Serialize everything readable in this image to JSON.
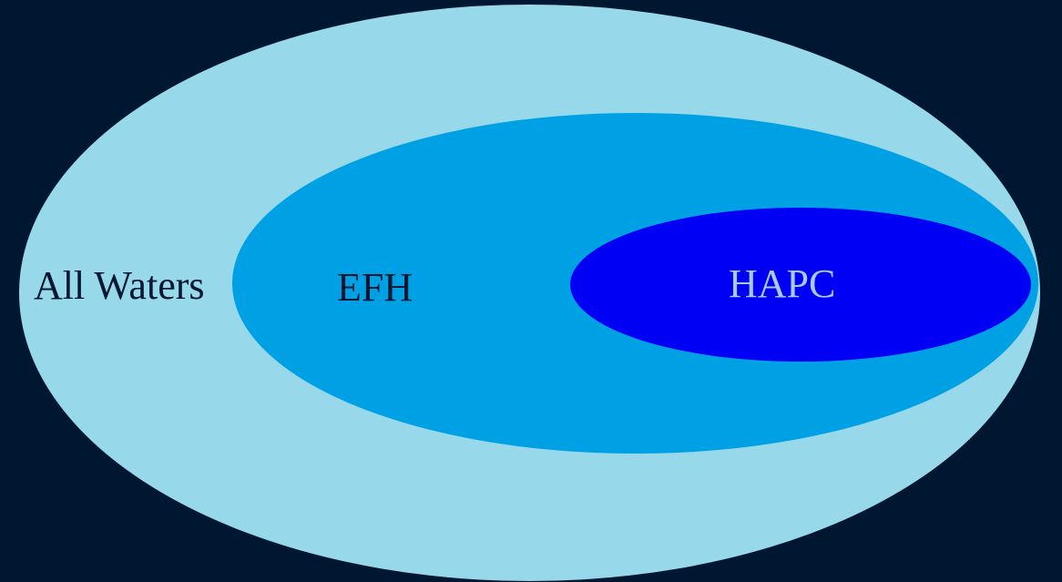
{
  "diagram": {
    "colors": {
      "background": "#001731",
      "outer_fill": "#97d8ea",
      "middle_fill": "#00a1e4",
      "inner_fill": "#0000f4",
      "dark_text": "#001731",
      "light_text": "#a9c9ee"
    },
    "regions": {
      "outer": {
        "label": "All Waters"
      },
      "middle": {
        "label": "EFH"
      },
      "inner": {
        "label": "HAPC"
      }
    }
  }
}
